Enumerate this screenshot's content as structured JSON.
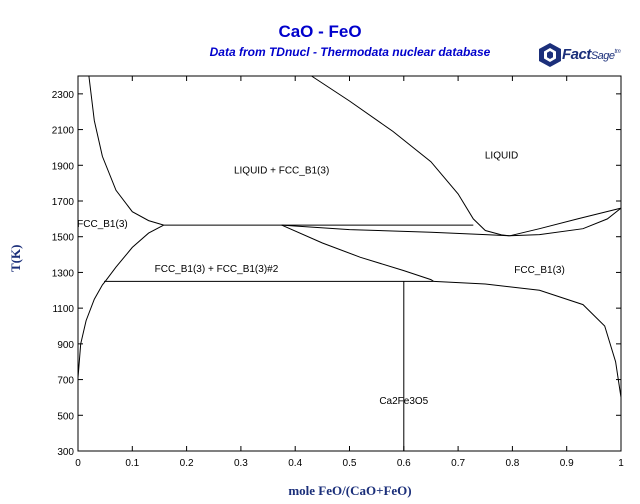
{
  "chart_data": {
    "type": "line",
    "title": "CaO - FeO",
    "subtitle": "Data from TDnucl - Thermodata nuclear database",
    "xlabel": "mole FeO/(CaO+FeO)",
    "ylabel": "T(K)",
    "xlim": [
      0,
      1
    ],
    "ylim": [
      300,
      2400
    ],
    "x_ticks": [
      "0",
      "0.1",
      "0.2",
      "0.3",
      "0.4",
      "0.5",
      "0.6",
      "0.7",
      "0.8",
      "0.9",
      "1"
    ],
    "y_ticks": [
      "300",
      "500",
      "700",
      "900",
      "1100",
      "1300",
      "1500",
      "1700",
      "1900",
      "2100",
      "2300"
    ],
    "grid": false,
    "series": [
      {
        "x": [
          0.02,
          0.03,
          0.045,
          0.07,
          0.1,
          0.13,
          0.158
        ],
        "y": [
          2400,
          2150,
          1950,
          1760,
          1640,
          1590,
          1565
        ]
      },
      {
        "x": [
          0.158,
          0.728
        ],
        "y": [
          1565,
          1565
        ]
      },
      {
        "x": [
          0.43,
          0.5,
          0.58,
          0.65,
          0.7,
          0.728,
          0.75,
          0.78,
          0.795
        ],
        "y": [
          2400,
          2260,
          2090,
          1920,
          1740,
          1600,
          1535,
          1510,
          1505
        ]
      },
      {
        "x": [
          0.795,
          0.85,
          0.92,
          1.0
        ],
        "y": [
          1505,
          1545,
          1600,
          1660
        ]
      },
      {
        "x": [
          0.375,
          0.5,
          0.65,
          0.75,
          0.795
        ],
        "y": [
          1565,
          1540,
          1525,
          1512,
          1505
        ]
      },
      {
        "x": [
          0.795,
          0.85,
          0.93,
          0.975,
          1.0
        ],
        "y": [
          1505,
          1512,
          1545,
          1600,
          1660
        ]
      },
      {
        "x": [
          0.05,
          0.07,
          0.1,
          0.13,
          0.158
        ],
        "y": [
          1250,
          1330,
          1440,
          1520,
          1565
        ]
      },
      {
        "x": [
          0.375,
          0.45,
          0.52,
          0.6,
          0.65,
          0.655
        ],
        "y": [
          1565,
          1465,
          1385,
          1310,
          1260,
          1250
        ]
      },
      {
        "x": [
          0.048,
          0.655
        ],
        "y": [
          1250,
          1250
        ]
      },
      {
        "x": [
          0.6,
          0.6
        ],
        "y": [
          1250,
          300
        ]
      },
      {
        "x": [
          0.655,
          0.75,
          0.85,
          0.93,
          0.97,
          0.99,
          1.0
        ],
        "y": [
          1250,
          1235,
          1200,
          1120,
          1000,
          800,
          600
        ]
      },
      {
        "x": [
          0.0,
          0.005,
          0.015,
          0.03,
          0.045,
          0.05
        ],
        "y": [
          710,
          900,
          1030,
          1150,
          1230,
          1250
        ]
      }
    ],
    "annotations": [
      {
        "text": "LIQUID",
        "x": 0.78,
        "y": 1955
      },
      {
        "text": "LIQUID + FCC_B1(3)",
        "x": 0.375,
        "y": 1870
      },
      {
        "text": "FCC_B1(3)",
        "x": 0.045,
        "y": 1570
      },
      {
        "text": "FCC_B1(3) + FCC_B1(3)#2",
        "x": 0.255,
        "y": 1320
      },
      {
        "text": "FCC_B1(3)",
        "x": 0.85,
        "y": 1315
      },
      {
        "text": "Ca2Fe3O5",
        "x": 0.6,
        "y": 580
      }
    ]
  },
  "logo": {
    "brand": "Fact",
    "suffix": "Sage",
    "mark": "tm"
  }
}
